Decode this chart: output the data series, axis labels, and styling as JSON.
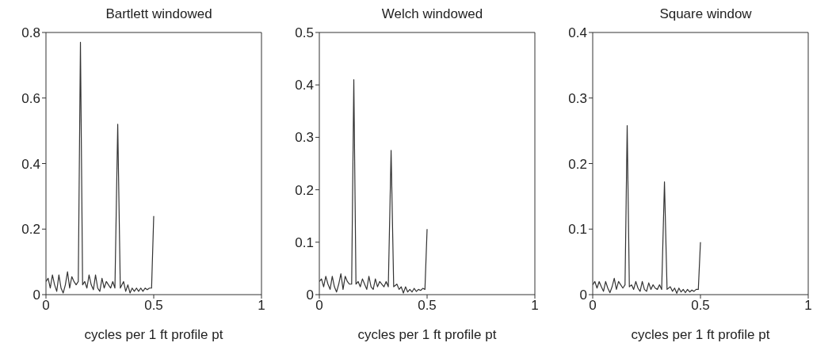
{
  "chart_data": [
    {
      "type": "line",
      "title": "Bartlett windowed",
      "xlabel": "cycles per 1 ft profile pt",
      "color": "#333333",
      "xlim": [
        0,
        1
      ],
      "xticks": [
        0,
        0.5,
        1
      ],
      "ylim": [
        0,
        0.8
      ],
      "yticks": [
        0,
        0.2,
        0.4,
        0.6,
        0.8
      ],
      "x": [
        0,
        0.01,
        0.02,
        0.03,
        0.04,
        0.05,
        0.06,
        0.07,
        0.08,
        0.09,
        0.1,
        0.11,
        0.12,
        0.13,
        0.14,
        0.15,
        0.16,
        0.17,
        0.18,
        0.19,
        0.2,
        0.21,
        0.22,
        0.23,
        0.24,
        0.25,
        0.26,
        0.27,
        0.28,
        0.29,
        0.3,
        0.31,
        0.32,
        0.333,
        0.345,
        0.36,
        0.37,
        0.38,
        0.39,
        0.4,
        0.41,
        0.42,
        0.43,
        0.44,
        0.45,
        0.46,
        0.47,
        0.48,
        0.49,
        0.5
      ],
      "values": [
        0.04,
        0.05,
        0.02,
        0.06,
        0.03,
        0.01,
        0.06,
        0.02,
        0.005,
        0.03,
        0.07,
        0.02,
        0.055,
        0.04,
        0.03,
        0.04,
        0.77,
        0.03,
        0.04,
        0.02,
        0.06,
        0.03,
        0.015,
        0.06,
        0.02,
        0.01,
        0.05,
        0.02,
        0.04,
        0.03,
        0.02,
        0.04,
        0.02,
        0.52,
        0.02,
        0.04,
        0.01,
        0.03,
        0.005,
        0.02,
        0.01,
        0.02,
        0.01,
        0.02,
        0.01,
        0.02,
        0.015,
        0.02,
        0.02,
        0.24
      ]
    },
    {
      "type": "line",
      "title": "Welch windowed",
      "xlabel": "cycles per 1 ft profile pt",
      "color": "#333333",
      "xlim": [
        0,
        1
      ],
      "xticks": [
        0,
        0.5,
        1
      ],
      "ylim": [
        0,
        0.5
      ],
      "yticks": [
        0,
        0.1,
        0.2,
        0.3,
        0.4,
        0.5
      ],
      "x": [
        0,
        0.01,
        0.02,
        0.03,
        0.04,
        0.05,
        0.06,
        0.07,
        0.08,
        0.09,
        0.1,
        0.11,
        0.12,
        0.13,
        0.14,
        0.15,
        0.16,
        0.17,
        0.18,
        0.19,
        0.2,
        0.21,
        0.22,
        0.23,
        0.24,
        0.25,
        0.26,
        0.27,
        0.28,
        0.29,
        0.3,
        0.31,
        0.32,
        0.333,
        0.345,
        0.36,
        0.37,
        0.38,
        0.39,
        0.4,
        0.41,
        0.42,
        0.43,
        0.44,
        0.45,
        0.46,
        0.47,
        0.48,
        0.49,
        0.5
      ],
      "values": [
        0.025,
        0.03,
        0.015,
        0.035,
        0.02,
        0.01,
        0.035,
        0.015,
        0.005,
        0.02,
        0.04,
        0.01,
        0.035,
        0.025,
        0.02,
        0.02,
        0.41,
        0.02,
        0.025,
        0.015,
        0.03,
        0.02,
        0.01,
        0.035,
        0.015,
        0.01,
        0.03,
        0.015,
        0.025,
        0.02,
        0.015,
        0.025,
        0.015,
        0.275,
        0.015,
        0.02,
        0.01,
        0.015,
        0.003,
        0.015,
        0.005,
        0.01,
        0.005,
        0.012,
        0.006,
        0.01,
        0.008,
        0.012,
        0.01,
        0.125
      ]
    },
    {
      "type": "line",
      "title": "Square window",
      "xlabel": "cycles per 1 ft profile pt",
      "color": "#333333",
      "xlim": [
        0,
        1
      ],
      "xticks": [
        0,
        0.5,
        1
      ],
      "ylim": [
        0,
        0.4
      ],
      "yticks": [
        0,
        0.1,
        0.2,
        0.3,
        0.4
      ],
      "x": [
        0,
        0.01,
        0.02,
        0.03,
        0.04,
        0.05,
        0.06,
        0.07,
        0.08,
        0.09,
        0.1,
        0.11,
        0.12,
        0.13,
        0.14,
        0.15,
        0.16,
        0.17,
        0.18,
        0.19,
        0.2,
        0.21,
        0.22,
        0.23,
        0.24,
        0.25,
        0.26,
        0.27,
        0.28,
        0.29,
        0.3,
        0.31,
        0.32,
        0.333,
        0.345,
        0.36,
        0.37,
        0.38,
        0.39,
        0.4,
        0.41,
        0.42,
        0.43,
        0.44,
        0.45,
        0.46,
        0.47,
        0.48,
        0.49,
        0.5
      ],
      "values": [
        0.015,
        0.02,
        0.01,
        0.02,
        0.012,
        0.005,
        0.02,
        0.01,
        0.003,
        0.012,
        0.025,
        0.008,
        0.02,
        0.015,
        0.01,
        0.015,
        0.258,
        0.012,
        0.015,
        0.008,
        0.02,
        0.01,
        0.005,
        0.02,
        0.008,
        0.005,
        0.018,
        0.008,
        0.015,
        0.01,
        0.008,
        0.015,
        0.008,
        0.172,
        0.008,
        0.012,
        0.005,
        0.01,
        0.002,
        0.01,
        0.004,
        0.008,
        0.003,
        0.008,
        0.004,
        0.007,
        0.005,
        0.008,
        0.008,
        0.08
      ]
    }
  ]
}
